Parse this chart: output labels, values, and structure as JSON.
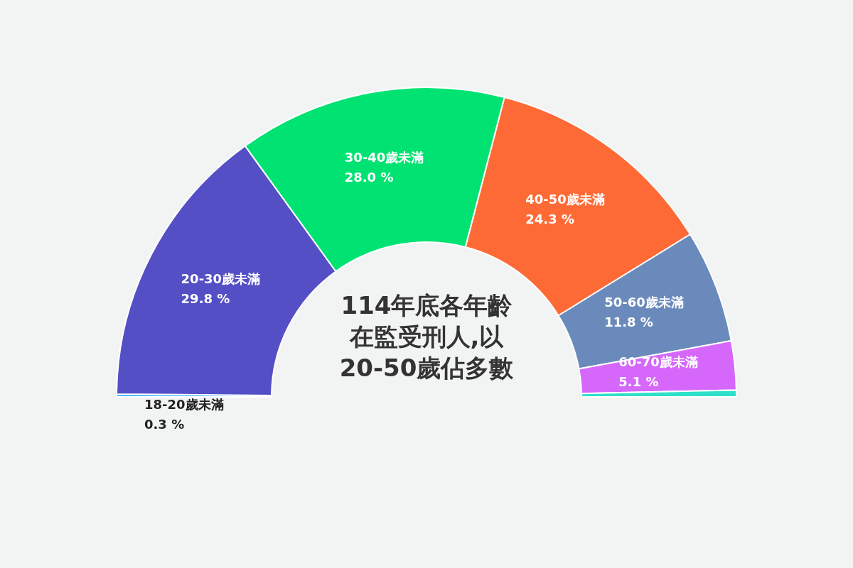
{
  "chart_data": {
    "type": "donut",
    "title": "114年底各年齡在監受刑人,以20-50歲佔多數",
    "categories": [
      "18-20歲未滿",
      "20-30歲未滿",
      "30-40歲未滿",
      "40-50歲未滿",
      "50-60歲未滿",
      "60-70歲未滿",
      null
    ],
    "values": [
      0.3,
      29.8,
      28.0,
      24.3,
      11.8,
      5.1,
      0.7
    ],
    "value_labels": [
      "0.3 %",
      "29.8 %",
      "28.0 %",
      "24.3 %",
      "11.8 %",
      "5.1 %",
      null
    ],
    "colors": [
      "#2caffe",
      "#544fc5",
      "#00e272",
      "#fe6a35",
      "#6b8abc",
      "#d568fb",
      "#2ee0ca"
    ],
    "legend": false
  }
}
